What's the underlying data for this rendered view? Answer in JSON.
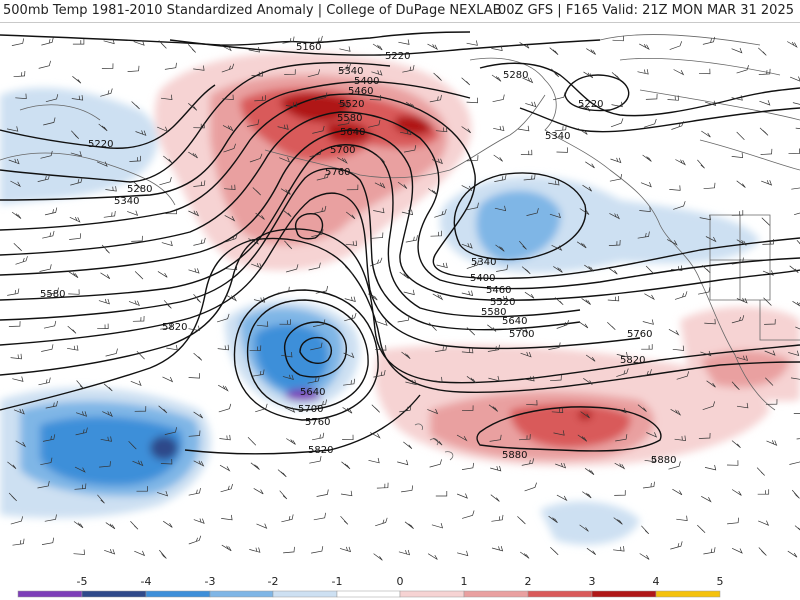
{
  "header": {
    "title_left": "500mb Temp 1981-2010 Standardized Anomaly | College of DuPage NEXLAB",
    "title_right": "00Z GFS | F165 Valid: 21Z MON MAR 31 2025"
  },
  "map": {
    "contour_labels": [
      "5160",
      "5220",
      "5280",
      "5340",
      "5400",
      "5460",
      "5520",
      "5580",
      "5640",
      "5700",
      "5760",
      "5820",
      "5880"
    ],
    "colors": {
      "neg5": "#7d3fb8",
      "neg4": "#2f4a8a",
      "neg3": "#3d8fd9",
      "neg2": "#7fb6e6",
      "neg1": "#cde0f2",
      "pos1": "#f6d3d3",
      "pos2": "#e9a0a0",
      "pos3": "#d95a5a",
      "pos4": "#b01818",
      "pos5": "#f4c20d",
      "contour": "#111111",
      "coast": "#666666"
    }
  },
  "colorbar": {
    "ticks": [
      "-5",
      "-4",
      "-3",
      "-2",
      "-1",
      "0",
      "1",
      "2",
      "3",
      "4",
      "5"
    ]
  }
}
